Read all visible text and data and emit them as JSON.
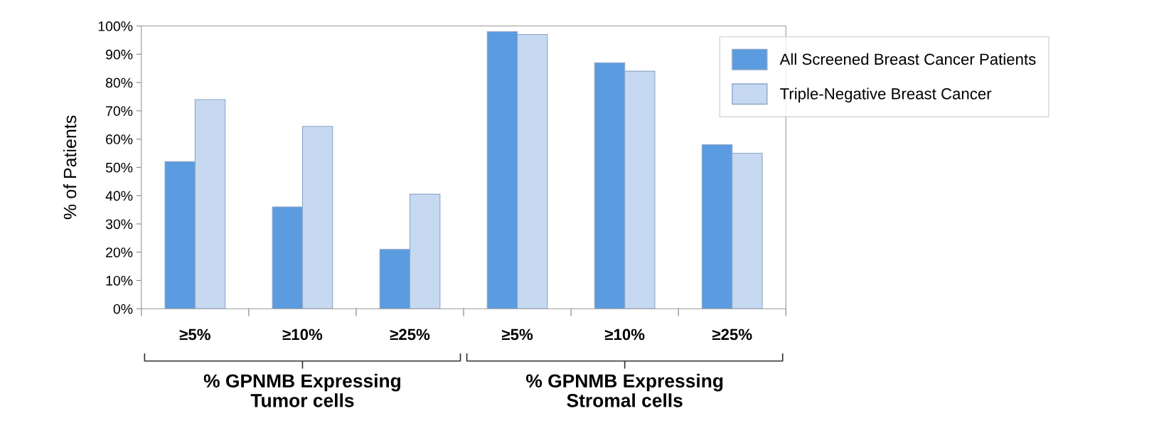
{
  "chart_data": {
    "type": "bar",
    "ylabel": "% of Patients",
    "categories": [
      "≥5%",
      "≥10%",
      "≥25%",
      "≥5%",
      "≥10%",
      "≥25%"
    ],
    "series": [
      {
        "name": "All Screened Breast Cancer Patients",
        "color": "#5b9be0",
        "values": [
          52,
          36,
          21,
          98,
          87,
          58
        ]
      },
      {
        "name": "Triple-Negative Breast Cancer",
        "color": "#c6d9f1",
        "values": [
          74,
          64.5,
          40.5,
          97,
          84,
          55
        ]
      }
    ],
    "ylim": [
      0,
      100
    ],
    "yticks": [
      {
        "value": 0,
        "label": "0%"
      },
      {
        "value": 10,
        "label": "10%"
      },
      {
        "value": 20,
        "label": "20%"
      },
      {
        "value": 30,
        "label": "30%"
      },
      {
        "value": 40,
        "label": "40%"
      },
      {
        "value": 50,
        "label": "50%"
      },
      {
        "value": 60,
        "label": "60%"
      },
      {
        "value": 70,
        "label": "70%"
      },
      {
        "value": 80,
        "label": "80%"
      },
      {
        "value": 90,
        "label": "90%"
      },
      {
        "value": 100,
        "label": "100%"
      }
    ],
    "annotations": [
      "% GPNMB Expressing\nTumor cells",
      "% GPNMB Expressing\nStromal cells"
    ],
    "legend": "top right",
    "grid": false
  }
}
